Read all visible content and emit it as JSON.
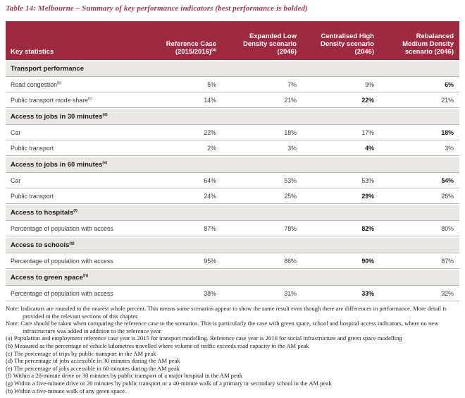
{
  "title": "Table 14: Melbourne – Summary of key performance indicators (best performance is bolded)",
  "colors": {
    "header_bg": "#9c2b40",
    "header_text": "#ffffff",
    "title_text": "#a33950",
    "section_bg": "#e8e7e4",
    "row_border": "#b9b7b4"
  },
  "table": {
    "key_column_header": "Key statistics",
    "columns": [
      {
        "lines": [
          "Reference Case",
          "(2015/2016)"
        ],
        "sup": "(a)"
      },
      {
        "lines": [
          "Expanded Low",
          "Density scenario",
          "(2046)"
        ],
        "sup": ""
      },
      {
        "lines": [
          "Centralised High",
          "Density scenario",
          "(2046)"
        ],
        "sup": ""
      },
      {
        "lines": [
          "Rebalanced",
          "Medium Density",
          "scenario (2046)"
        ],
        "sup": ""
      }
    ],
    "sections": [
      {
        "heading": "Transport performance",
        "sup": "",
        "rows": [
          {
            "label": "Road congestion",
            "sup": "(b)",
            "values": [
              "5%",
              "7%",
              "9%",
              "6%"
            ],
            "bold_col": 3
          },
          {
            "label": "Public transport mode share",
            "sup": "(c)",
            "values": [
              "14%",
              "21%",
              "22%",
              "21%"
            ],
            "bold_col": 2
          }
        ]
      },
      {
        "heading": "Access to jobs in 30 minutes",
        "sup": "(d)",
        "rows": [
          {
            "label": "Car",
            "sup": "",
            "values": [
              "22%",
              "18%",
              "17%",
              "18%"
            ],
            "bold_col": 3
          },
          {
            "label": "Public transport",
            "sup": "",
            "values": [
              "2%",
              "3%",
              "4%",
              "3%"
            ],
            "bold_col": 2
          }
        ]
      },
      {
        "heading": "Access to jobs in 60 minutes",
        "sup": "(e)",
        "rows": [
          {
            "label": "Car",
            "sup": "",
            "values": [
              "64%",
              "53%",
              "53%",
              "54%"
            ],
            "bold_col": 3
          },
          {
            "label": "Public transport",
            "sup": "",
            "values": [
              "24%",
              "25%",
              "29%",
              "26%"
            ],
            "bold_col": 2
          }
        ]
      },
      {
        "heading": "Access to hospitals",
        "sup": "(f)",
        "rows": [
          {
            "label": "Percentage of population with access",
            "sup": "",
            "values": [
              "87%",
              "78%",
              "82%",
              "80%"
            ],
            "bold_col": 2
          }
        ]
      },
      {
        "heading": "Access to schools",
        "sup": "(g)",
        "rows": [
          {
            "label": "Percentage of population with access",
            "sup": "",
            "values": [
              "95%",
              "86%",
              "90%",
              "87%"
            ],
            "bold_col": 2
          }
        ]
      },
      {
        "heading": "Access to green space",
        "sup": "(h)",
        "rows": [
          {
            "label": "Percentage of population with access",
            "sup": "",
            "values": [
              "38%",
              "31%",
              "33%",
              "32%"
            ],
            "bold_col": 2
          }
        ]
      }
    ]
  },
  "notes": [
    {
      "prefix": "Note:",
      "text": "Indicators are rounded to the nearest whole percent. This means some scenarios appear to show the same result even though there are differences in performance. More detail is provided in the relevant sections of this chapter."
    },
    {
      "prefix": "Note:",
      "text": "Care should be taken when comparing the reference case to the scenarios. This is particularly the case with green space, school and hospital access indicators, where no new infrastructure was added in addition to the reference year."
    }
  ],
  "footnotes": [
    {
      "marker": "(a)",
      "text": "Population and employment reference case year is 2015 for transport modelling. Reference case year is 2016 for social infrastructure and green space modelling"
    },
    {
      "marker": "(b)",
      "text": "Measured as the percentage of vehicle kilometres travelled where volume of traffic exceeds road capacity in the AM peak"
    },
    {
      "marker": "(c)",
      "text": "The percentage of trips by public transport in the AM peak"
    },
    {
      "marker": "(d)",
      "text": "The percentage of jobs accessible in 30 minutes during the AM peak"
    },
    {
      "marker": "(e)",
      "text": "The percentage of jobs accessible in 60 minutes during the AM peak"
    },
    {
      "marker": "(f)",
      "text": "Within a 20-minute drive or 30 minutes by public transport of a major hospital in the AM peak"
    },
    {
      "marker": "(g)",
      "text": "Within a five-minute drive or 20 minutes by public transport or a 40-minute walk of a primary or secondary school in the AM peak"
    },
    {
      "marker": "(h)",
      "text": "Within a five-minute walk of any green space."
    }
  ]
}
